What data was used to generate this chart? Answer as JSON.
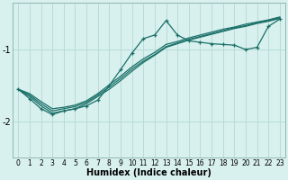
{
  "xlabel": "Humidex (Indice chaleur)",
  "background_color": "#d8f0ee",
  "grid_color": "#b8dcd8",
  "line_color": "#1a7068",
  "xlim": [
    -0.5,
    23.5
  ],
  "ylim": [
    -2.5,
    -0.35
  ],
  "yticks": [
    -2,
    -1
  ],
  "xticks": [
    0,
    1,
    2,
    3,
    4,
    5,
    6,
    7,
    8,
    9,
    10,
    11,
    12,
    13,
    14,
    15,
    16,
    17,
    18,
    19,
    20,
    21,
    22,
    23
  ],
  "line1_x": [
    0,
    1,
    2,
    3,
    4,
    5,
    6,
    7,
    8,
    9,
    10,
    11,
    12,
    13,
    14,
    15,
    16,
    17,
    18,
    19,
    20,
    21,
    22,
    23
  ],
  "line1_y": [
    -1.55,
    -1.68,
    -1.82,
    -1.9,
    -1.85,
    -1.82,
    -1.78,
    -1.7,
    -1.5,
    -1.28,
    -1.05,
    -0.85,
    -0.8,
    -0.6,
    -0.8,
    -0.88,
    -0.9,
    -0.92,
    -0.93,
    -0.94,
    -1.0,
    -0.97,
    -0.68,
    -0.58
  ],
  "line2_x": [
    0,
    1,
    2,
    3,
    4,
    5,
    6,
    7,
    8,
    9,
    10,
    11,
    12,
    13,
    14,
    15,
    16,
    17,
    18,
    19,
    20,
    21,
    22,
    23
  ],
  "line2_y": [
    -1.55,
    -1.65,
    -1.78,
    -1.88,
    -1.85,
    -1.82,
    -1.75,
    -1.65,
    -1.55,
    -1.43,
    -1.3,
    -1.18,
    -1.08,
    -0.97,
    -0.92,
    -0.87,
    -0.83,
    -0.79,
    -0.75,
    -0.71,
    -0.68,
    -0.64,
    -0.61,
    -0.57
  ],
  "line3_x": [
    0,
    1,
    2,
    3,
    4,
    5,
    6,
    7,
    8,
    9,
    10,
    11,
    12,
    13,
    14,
    15,
    16,
    17,
    18,
    19,
    20,
    21,
    22,
    23
  ],
  "line3_y": [
    -1.55,
    -1.63,
    -1.75,
    -1.85,
    -1.82,
    -1.79,
    -1.73,
    -1.63,
    -1.52,
    -1.4,
    -1.27,
    -1.16,
    -1.07,
    -0.96,
    -0.91,
    -0.86,
    -0.82,
    -0.78,
    -0.74,
    -0.7,
    -0.67,
    -0.63,
    -0.6,
    -0.56
  ],
  "line4_x": [
    0,
    1,
    2,
    3,
    4,
    5,
    6,
    7,
    8,
    9,
    10,
    11,
    12,
    13,
    14,
    15,
    16,
    17,
    18,
    19,
    20,
    21,
    22,
    23
  ],
  "line4_y": [
    -1.55,
    -1.61,
    -1.72,
    -1.82,
    -1.8,
    -1.77,
    -1.71,
    -1.61,
    -1.49,
    -1.37,
    -1.24,
    -1.13,
    -1.04,
    -0.93,
    -0.89,
    -0.84,
    -0.8,
    -0.76,
    -0.72,
    -0.69,
    -0.65,
    -0.62,
    -0.59,
    -0.55
  ]
}
